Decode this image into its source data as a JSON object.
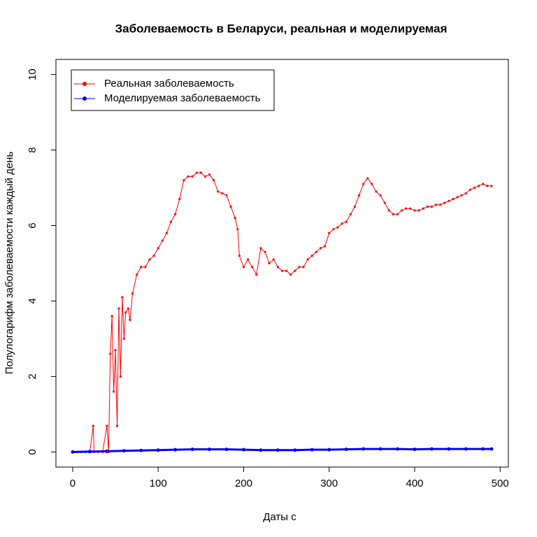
{
  "chart_data": {
    "type": "line",
    "title": "Заболеваемость в Беларуси, реальная и моделируемая",
    "x_label": "Даты с",
    "y_label": "Полулогарифм заболеваемости каждый день",
    "xlim": [
      -19.6,
      509.6
    ],
    "ylim": [
      -0.4,
      10.4
    ],
    "xticks": [
      0,
      100,
      200,
      300,
      400,
      500
    ],
    "yticks": [
      0,
      2,
      4,
      6,
      8,
      10
    ],
    "legend": "top-left",
    "series": [
      {
        "name": "Реальная заболеваемость",
        "color": "#ff0000",
        "x": [
          0,
          5,
          10,
          15,
          20,
          24,
          25,
          30,
          35,
          40,
          42,
          44,
          46,
          48,
          50,
          52,
          54,
          56,
          58,
          60,
          62,
          65,
          67,
          70,
          75,
          80,
          85,
          90,
          95,
          100,
          105,
          110,
          115,
          120,
          125,
          130,
          135,
          140,
          145,
          150,
          155,
          160,
          165,
          170,
          175,
          180,
          185,
          190,
          193,
          195,
          200,
          205,
          210,
          215,
          220,
          225,
          230,
          235,
          240,
          245,
          250,
          255,
          260,
          265,
          270,
          275,
          280,
          285,
          290,
          295,
          300,
          305,
          310,
          315,
          320,
          325,
          330,
          335,
          340,
          345,
          350,
          355,
          360,
          365,
          370,
          375,
          380,
          385,
          390,
          395,
          400,
          405,
          410,
          415,
          420,
          425,
          430,
          435,
          440,
          445,
          450,
          455,
          460,
          465,
          470,
          475,
          480,
          485,
          490
        ],
        "values": [
          0,
          0,
          0,
          0,
          0,
          0.69,
          0,
          0,
          0,
          0.69,
          0,
          2.6,
          3.6,
          1.6,
          2.7,
          0.69,
          3.8,
          2.0,
          4.1,
          3.0,
          3.7,
          3.8,
          3.5,
          4.2,
          4.7,
          4.9,
          4.9,
          5.1,
          5.2,
          5.4,
          5.6,
          5.8,
          6.1,
          6.3,
          6.7,
          7.2,
          7.3,
          7.3,
          7.4,
          7.4,
          7.3,
          7.35,
          7.2,
          6.9,
          6.85,
          6.8,
          6.5,
          6.2,
          5.9,
          5.2,
          4.9,
          5.1,
          4.9,
          4.7,
          5.4,
          5.3,
          5.0,
          5.1,
          4.9,
          4.8,
          4.8,
          4.7,
          4.8,
          4.9,
          4.9,
          5.1,
          5.2,
          5.3,
          5.4,
          5.45,
          5.8,
          5.9,
          5.95,
          6.05,
          6.1,
          6.3,
          6.5,
          6.8,
          7.1,
          7.25,
          7.1,
          6.9,
          6.8,
          6.6,
          6.4,
          6.3,
          6.3,
          6.4,
          6.45,
          6.45,
          6.4,
          6.4,
          6.45,
          6.5,
          6.5,
          6.55,
          6.55,
          6.6,
          6.65,
          6.7,
          6.75,
          6.8,
          6.85,
          6.95,
          7.0,
          7.05,
          7.1,
          7.05,
          7.05
        ]
      },
      {
        "name": "Моделируемая заболеваемость",
        "color": "#0000ff",
        "x": [
          0,
          20,
          40,
          60,
          80,
          100,
          120,
          140,
          160,
          180,
          200,
          220,
          240,
          260,
          280,
          300,
          320,
          340,
          360,
          380,
          400,
          420,
          440,
          460,
          480,
          490
        ],
        "values": [
          0,
          0.01,
          0.02,
          0.03,
          0.04,
          0.05,
          0.06,
          0.07,
          0.07,
          0.07,
          0.06,
          0.05,
          0.05,
          0.05,
          0.06,
          0.06,
          0.07,
          0.08,
          0.08,
          0.08,
          0.07,
          0.08,
          0.08,
          0.08,
          0.08,
          0.08
        ]
      }
    ]
  }
}
